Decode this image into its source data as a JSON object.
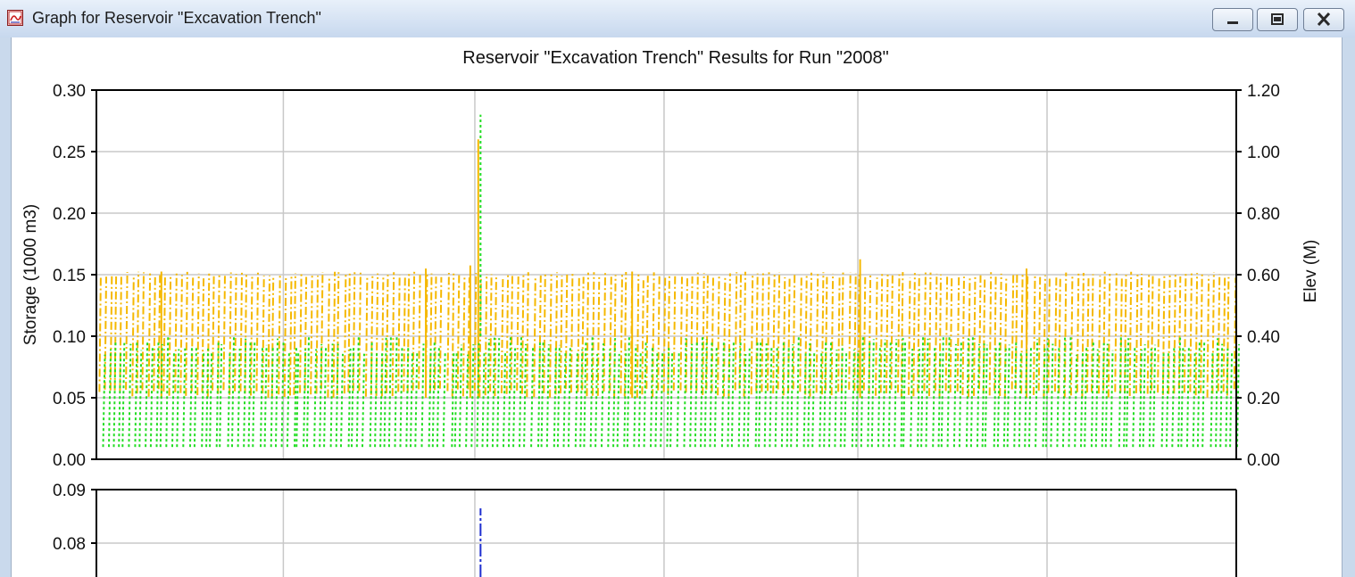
{
  "window": {
    "title": "Graph for Reservoir \"Excavation Trench\"",
    "minimize_icon": "minimize-icon",
    "maximize_icon": "restore-icon",
    "close_icon": "close-icon",
    "app_icon": "graph-app-icon"
  },
  "colors": {
    "elevation": "#f5b800",
    "storage": "#22dd22",
    "outflow": "#1f2fd0",
    "grid": "#c8c8c8",
    "axis": "#000000"
  },
  "chart_data": [
    {
      "type": "line",
      "title": "Reservoir \"Excavation Trench\" Results for Run \"2008\"",
      "ylabel": "Storage (1000 m3)",
      "y2label": "Elev (M)",
      "ylim": [
        0,
        0.3
      ],
      "y2lim": [
        0,
        1.2
      ],
      "yticks": [
        "0.00",
        "0.05",
        "0.10",
        "0.15",
        "0.20",
        "0.25",
        "0.30"
      ],
      "y2ticks": [
        "0.00",
        "0.20",
        "0.40",
        "0.60",
        "0.80",
        "1.00",
        "1.20"
      ],
      "x_range": [
        0,
        100
      ],
      "x_gridlines": [
        16.4,
        33.2,
        49.8,
        66.8,
        83.4
      ],
      "grid": true,
      "legend": "none",
      "series": [
        {
          "axis": "y2",
          "style": "dash-dot",
          "color": "#f5b800",
          "baseline": 0.2,
          "peak": 0.6,
          "spikes": [
            {
              "x": 33.5,
              "value": 1.04
            },
            {
              "x": 32.8,
              "value": 0.63
            },
            {
              "x": 67.0,
              "value": 0.65
            },
            {
              "x": 28.9,
              "value": 0.62
            },
            {
              "x": 81.6,
              "value": 0.62
            },
            {
              "x": 5.7,
              "value": 0.61
            },
            {
              "x": 47.0,
              "value": 0.61
            }
          ]
        },
        {
          "axis": "y",
          "style": "dotted",
          "color": "#22dd22",
          "baseline": 0.01,
          "peak": 0.1,
          "spikes": [
            {
              "x": 33.7,
              "value": 0.28
            }
          ]
        }
      ]
    },
    {
      "type": "line",
      "title": "",
      "ylim": [
        0.07,
        0.09
      ],
      "yticks": [
        "0.08",
        "0.09"
      ],
      "x_range": [
        0,
        100
      ],
      "x_gridlines": [
        16.4,
        33.2,
        49.8,
        66.8,
        83.4
      ],
      "grid": true,
      "series": [
        {
          "style": "dash-dot",
          "color": "#1f2fd0",
          "spikes": [
            {
              "x": 33.7,
              "value": 0.0865
            }
          ]
        }
      ]
    }
  ]
}
